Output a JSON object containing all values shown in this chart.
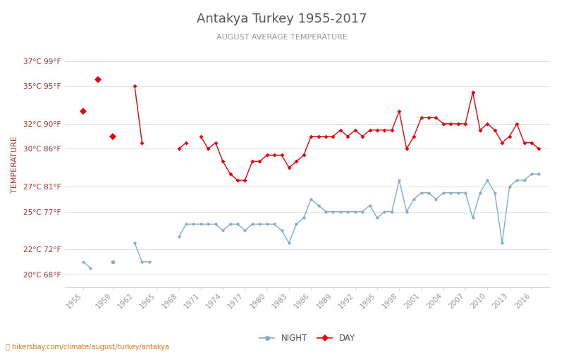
{
  "title": "Antakya Turkey 1955-2017",
  "subtitle": "AUGUST AVERAGE TEMPERATURE",
  "ylabel": "TEMPERATURE",
  "xlabel_url": "hikersbay.com/climate/august/turkey/antakya",
  "years": [
    1955,
    1956,
    1957,
    1958,
    1959,
    1960,
    1961,
    1962,
    1963,
    1964,
    1965,
    1966,
    1967,
    1968,
    1969,
    1970,
    1971,
    1972,
    1973,
    1974,
    1975,
    1976,
    1977,
    1978,
    1979,
    1980,
    1981,
    1982,
    1983,
    1984,
    1985,
    1986,
    1987,
    1988,
    1989,
    1990,
    1991,
    1992,
    1993,
    1994,
    1995,
    1996,
    1997,
    1998,
    1999,
    2000,
    2001,
    2002,
    2003,
    2004,
    2005,
    2006,
    2007,
    2008,
    2009,
    2010,
    2011,
    2012,
    2013,
    2014,
    2015,
    2016,
    2017
  ],
  "day_temps": [
    33.0,
    null,
    35.5,
    null,
    31.0,
    null,
    null,
    35.0,
    30.5,
    null,
    null,
    null,
    null,
    30.0,
    30.5,
    null,
    31.0,
    30.0,
    30.5,
    29.0,
    28.0,
    27.5,
    27.5,
    29.0,
    29.0,
    29.5,
    29.5,
    29.5,
    28.5,
    29.0,
    29.5,
    31.0,
    31.0,
    31.0,
    31.0,
    31.5,
    31.0,
    31.5,
    31.0,
    31.5,
    31.5,
    31.5,
    31.5,
    33.0,
    30.0,
    31.0,
    32.5,
    32.5,
    32.5,
    32.0,
    32.0,
    32.0,
    32.0,
    34.5,
    31.5,
    32.0,
    31.5,
    30.5,
    31.0,
    32.0,
    30.5,
    30.5,
    30.0
  ],
  "night_temps": [
    21.0,
    20.5,
    null,
    null,
    21.0,
    null,
    null,
    22.5,
    21.0,
    21.0,
    null,
    null,
    null,
    23.0,
    24.0,
    24.0,
    24.0,
    24.0,
    24.0,
    23.5,
    24.0,
    24.0,
    23.5,
    24.0,
    24.0,
    24.0,
    24.0,
    23.5,
    22.5,
    24.0,
    24.5,
    26.0,
    25.5,
    25.0,
    25.0,
    25.0,
    25.0,
    25.0,
    25.0,
    25.5,
    24.5,
    25.0,
    25.0,
    27.5,
    25.0,
    26.0,
    26.5,
    26.5,
    26.0,
    26.5,
    26.5,
    26.5,
    26.5,
    24.5,
    26.5,
    27.5,
    26.5,
    22.5,
    27.0,
    27.5,
    27.5,
    28.0,
    28.0
  ],
  "day_color": "#e8000d",
  "night_color": "#82aec0",
  "title_color": "#555555",
  "subtitle_color": "#999999",
  "ylabel_color": "#aa3333",
  "tick_label_color": "#aa3333",
  "xtick_color": "#999999",
  "grid_color": "#d8d8d8",
  "background_color": "#ffffff",
  "yticks_c": [
    20,
    22,
    25,
    27,
    30,
    32,
    35,
    37
  ],
  "yticks_f": [
    68,
    72,
    77,
    81,
    86,
    90,
    95,
    99
  ],
  "ylim": [
    19.0,
    38.5
  ],
  "xtick_years": [
    1955,
    1959,
    1962,
    1965,
    1968,
    1971,
    1974,
    1977,
    1980,
    1983,
    1986,
    1989,
    1992,
    1995,
    1998,
    2001,
    2004,
    2007,
    2010,
    2013,
    2016
  ]
}
